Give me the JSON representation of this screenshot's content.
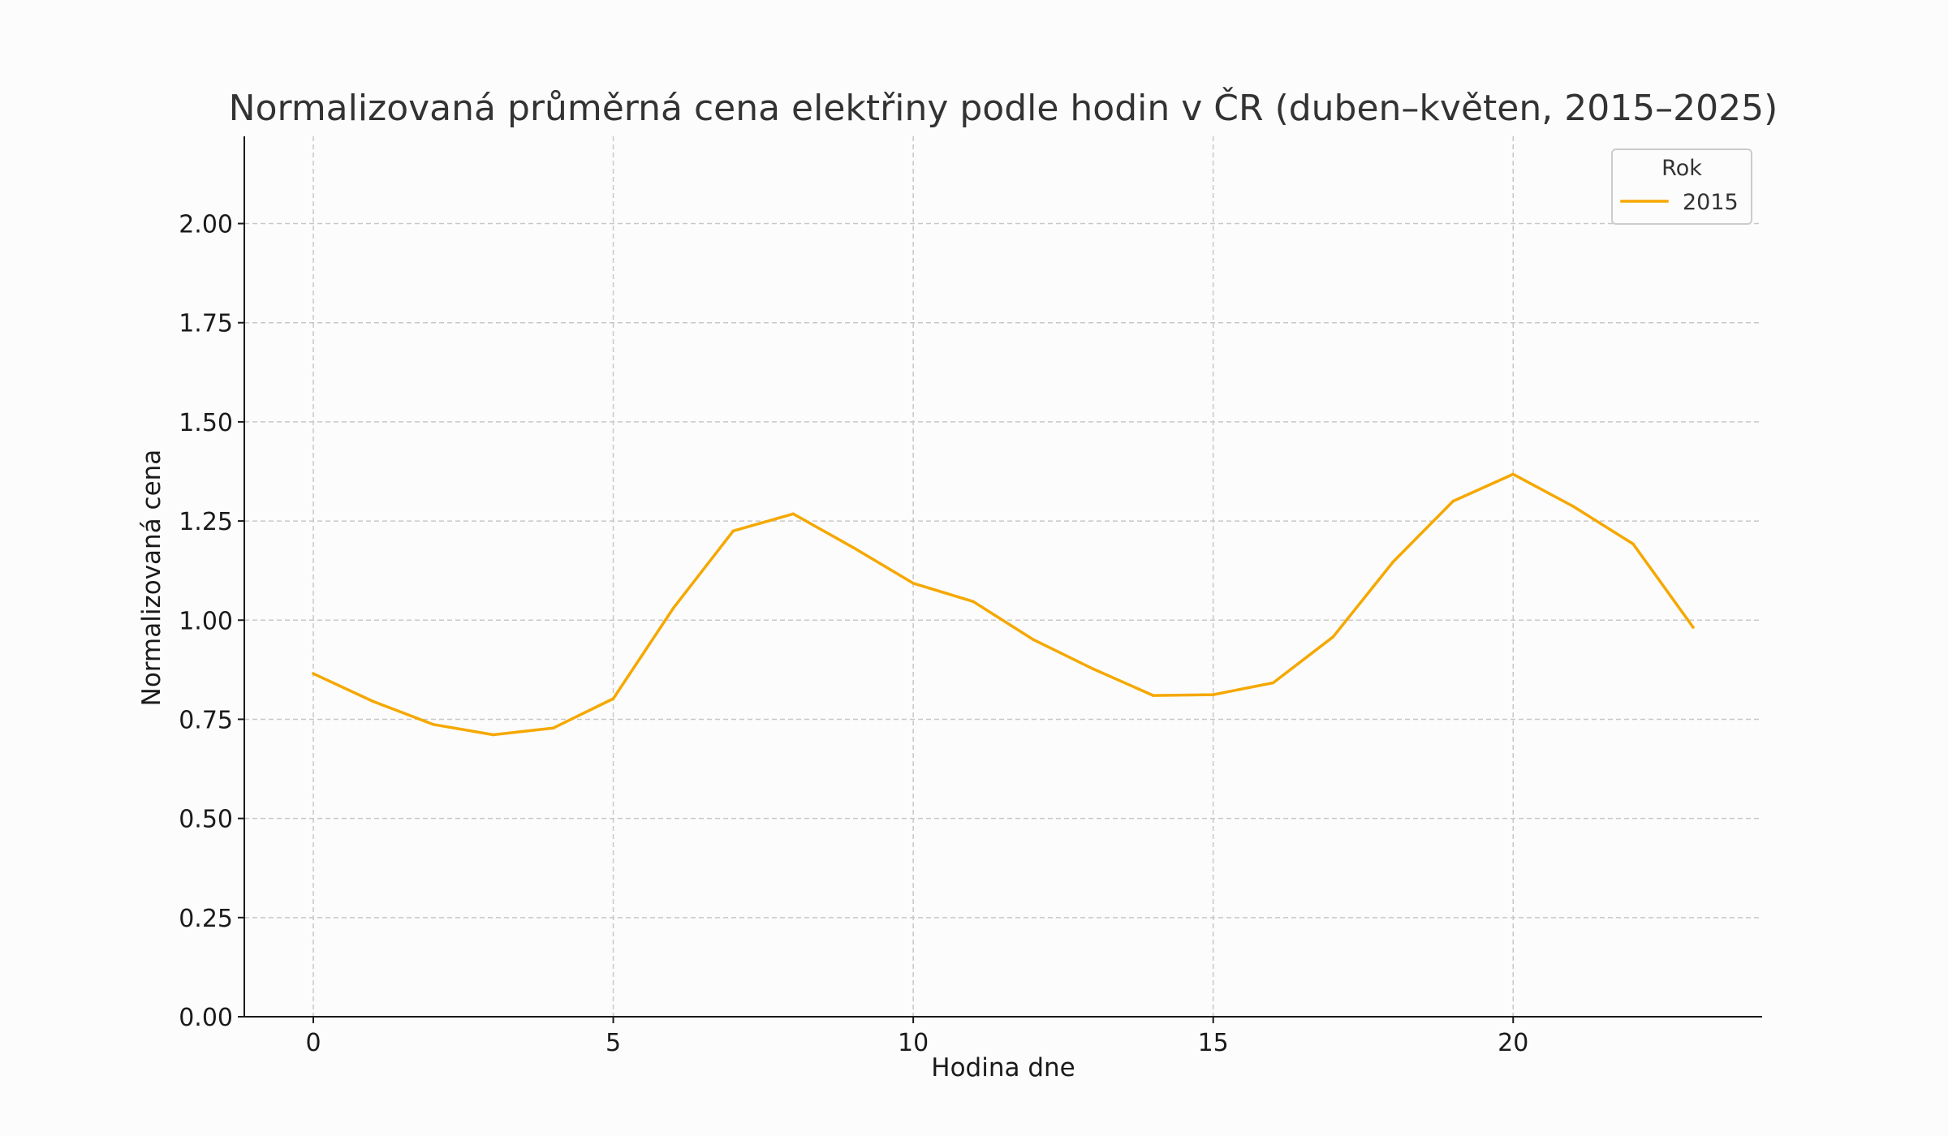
{
  "chart_data": {
    "type": "line",
    "title": "Normalizovaná průměrná cena elektřiny podle hodin v ČR (duben–květen, 2015–2025)",
    "xlabel": "Hodina dne",
    "ylabel": "Normalizovaná cena",
    "xlim": [
      -1.15,
      24.15
    ],
    "ylim": [
      0,
      2.22
    ],
    "x_ticks": [
      0,
      5,
      10,
      15,
      20
    ],
    "x_tick_labels": [
      "0",
      "5",
      "10",
      "15",
      "20"
    ],
    "y_ticks": [
      0,
      0.25,
      0.5,
      0.75,
      1.0,
      1.25,
      1.5,
      1.75,
      2.0
    ],
    "y_tick_labels": [
      "0.00",
      "0.25",
      "0.50",
      "0.75",
      "1.00",
      "1.25",
      "1.50",
      "1.75",
      "2.00"
    ],
    "grid": true,
    "legend": {
      "title": "Rok",
      "position": "top-right"
    },
    "series": [
      {
        "name": "2015",
        "color": "#f5a800",
        "x": [
          0,
          1,
          2,
          3,
          4,
          5,
          6,
          7,
          8,
          9,
          10,
          11,
          12,
          13,
          14,
          15,
          16,
          17,
          18,
          19,
          20,
          21,
          22,
          23
        ],
        "y": [
          0.865,
          0.795,
          0.737,
          0.711,
          0.728,
          0.802,
          1.03,
          1.225,
          1.268,
          1.183,
          1.093,
          1.047,
          0.951,
          0.877,
          0.81,
          0.812,
          0.842,
          0.958,
          1.147,
          1.3,
          1.368,
          1.287,
          1.192,
          0.982
        ]
      }
    ]
  }
}
